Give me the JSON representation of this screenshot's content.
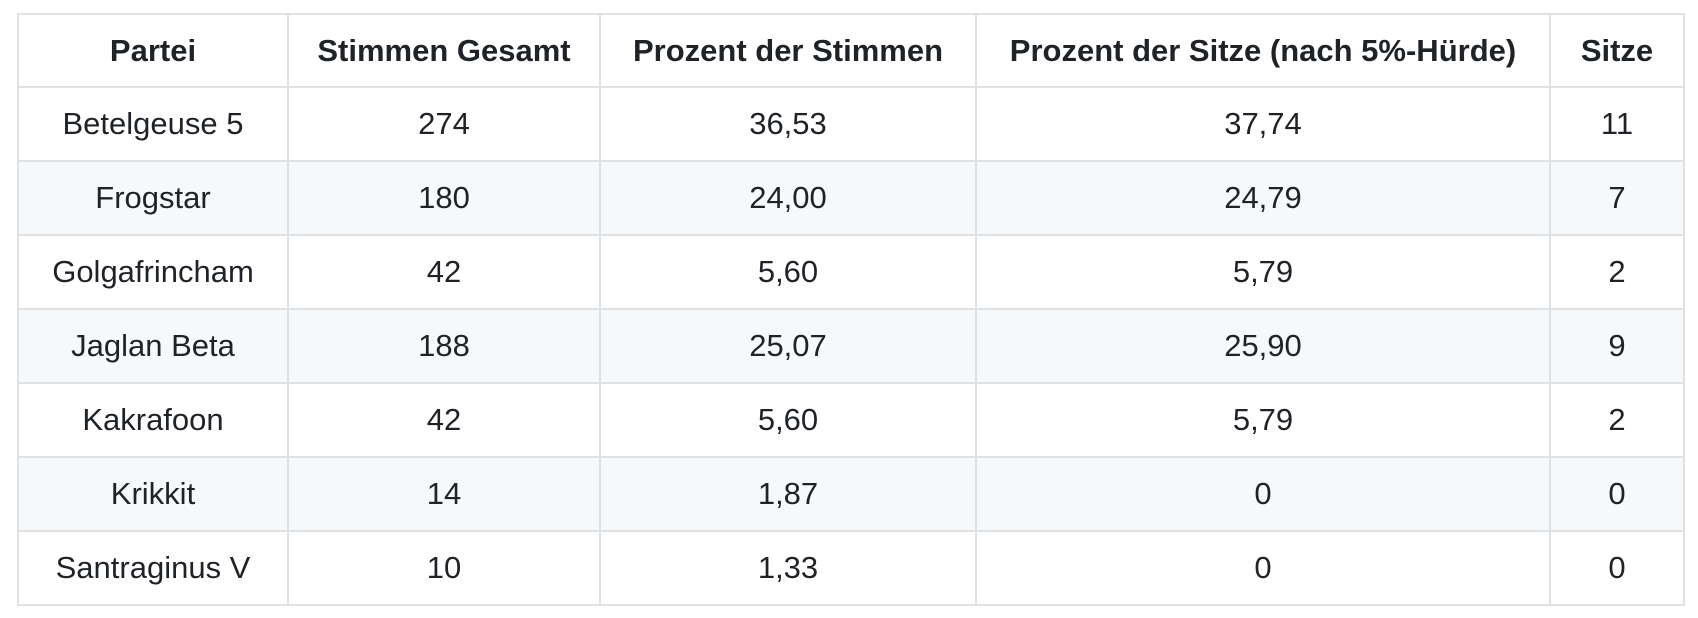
{
  "style": {
    "border_color": "#dfe2e5",
    "stripe_color": "#f6f8fa",
    "text_color": "#1f2328",
    "background": "#ffffff"
  },
  "table": {
    "columns": [
      "Partei",
      "Stimmen Gesamt",
      "Prozent der Stimmen",
      "Prozent der Sitze (nach 5%-Hürde)",
      "Sitze"
    ],
    "rows": [
      [
        "Betelgeuse 5",
        "274",
        "36,53",
        "37,74",
        "11"
      ],
      [
        "Frogstar",
        "180",
        "24,00",
        "24,79",
        "7"
      ],
      [
        "Golgafrincham",
        "42",
        "5,60",
        "5,79",
        "2"
      ],
      [
        "Jaglan Beta",
        "188",
        "25,07",
        "25,90",
        "9"
      ],
      [
        "Kakrafoon",
        "42",
        "5,60",
        "5,79",
        "2"
      ],
      [
        "Krikkit",
        "14",
        "1,87",
        "0",
        "0"
      ],
      [
        "Santraginus V",
        "10",
        "1,33",
        "0",
        "0"
      ]
    ]
  },
  "chart_data": {
    "type": "table",
    "columns": [
      "Partei",
      "Stimmen Gesamt",
      "Prozent der Stimmen",
      "Prozent der Sitze (nach 5%-Hürde)",
      "Sitze"
    ],
    "rows": [
      [
        "Betelgeuse 5",
        274,
        36.53,
        37.74,
        11
      ],
      [
        "Frogstar",
        180,
        24.0,
        24.79,
        7
      ],
      [
        "Golgafrincham",
        42,
        5.6,
        5.79,
        2
      ],
      [
        "Jaglan Beta",
        188,
        25.07,
        25.9,
        9
      ],
      [
        "Kakrafoon",
        42,
        5.6,
        5.79,
        2
      ],
      [
        "Krikkit",
        14,
        1.87,
        0,
        0
      ],
      [
        "Santraginus V",
        10,
        1.33,
        0,
        0
      ]
    ]
  }
}
